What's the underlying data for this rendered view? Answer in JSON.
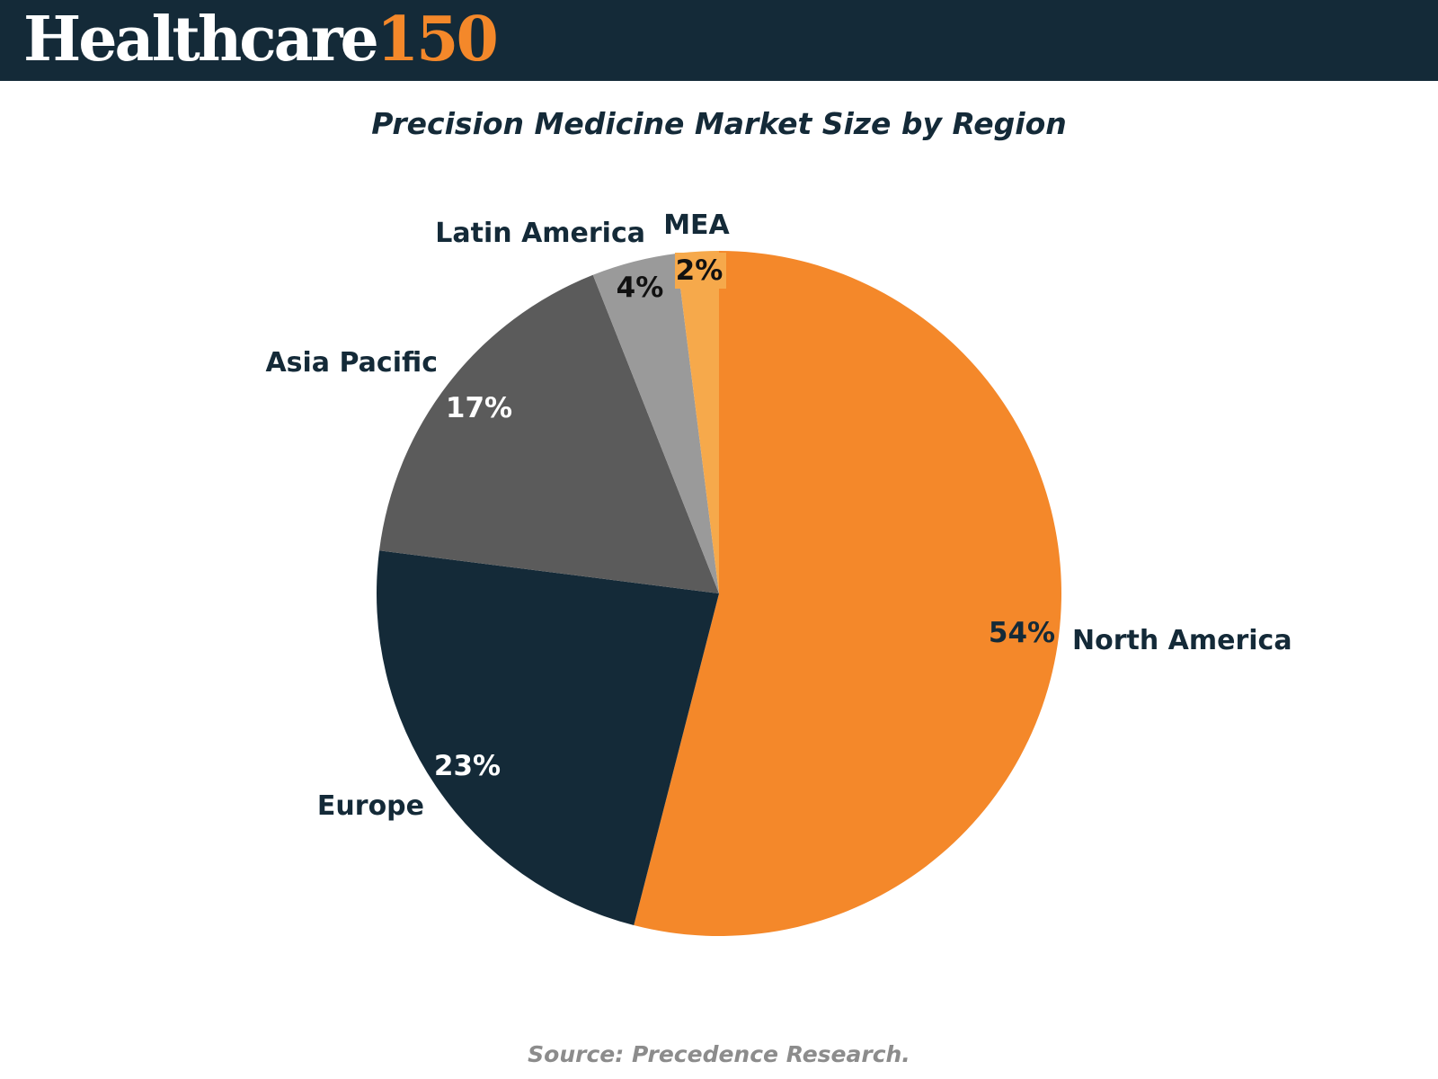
{
  "header": {
    "logo_text": "Healthcare",
    "logo_number": "150",
    "colors": {
      "background": "#142a38",
      "accent": "#f4882a"
    }
  },
  "chart_data": {
    "type": "pie",
    "title": "Precision Medicine Market Size by Region",
    "unit": "%",
    "slices": [
      {
        "name": "North America",
        "value": 54,
        "label": "54%",
        "color": "#f4882a",
        "label_color": "#142a38"
      },
      {
        "name": "Europe",
        "value": 23,
        "label": "23%",
        "color": "#142a38",
        "label_color": "#ffffff"
      },
      {
        "name": "Asia Pacific",
        "value": 17,
        "label": "17%",
        "color": "#5b5b5b",
        "label_color": "#ffffff"
      },
      {
        "name": "Latin America",
        "value": 4,
        "label": "4%",
        "color": "#9a9a9a",
        "label_color": "#111111"
      },
      {
        "name": "MEA",
        "value": 2,
        "label": "2%",
        "color": "#f6a94b",
        "label_color": "#111111"
      }
    ],
    "start_angle": "12 o'clock",
    "direction": "clockwise",
    "legend": "none (category labels beside slices)"
  },
  "footer": {
    "source": "Source: Precedence Research."
  }
}
